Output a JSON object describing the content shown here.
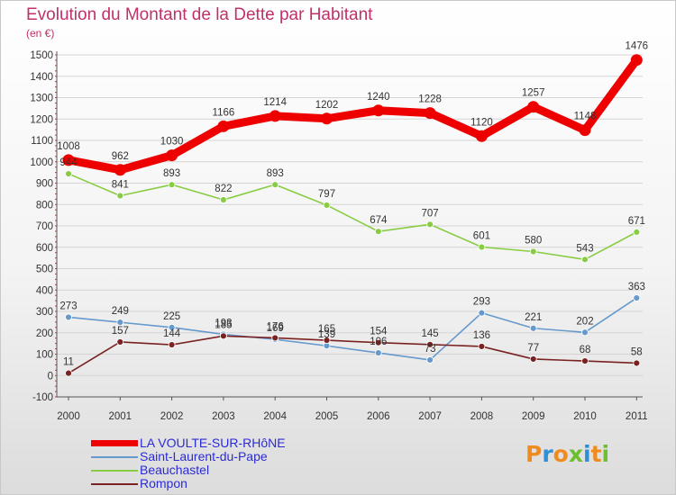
{
  "header": {
    "title": "Evolution du Montant de la Dette par Habitant",
    "unit": "(en €)"
  },
  "logo": {
    "text": "Proxiti",
    "colors": [
      "#f08c1e",
      "#2e8fd6",
      "#f08c1e",
      "#6cbf2e",
      "#2e8fd6",
      "#f08c1e",
      "#6cbf2e"
    ]
  },
  "chart_data": {
    "type": "line",
    "title": "Evolution du Montant de la Dette par Habitant",
    "ylabel": "(en €)",
    "xlabel": "",
    "categories": [
      "2000",
      "2001",
      "2002",
      "2003",
      "2004",
      "2005",
      "2006",
      "2007",
      "2008",
      "2009",
      "2010",
      "2011"
    ],
    "ylim": [
      -100,
      1500
    ],
    "yticks": [
      "1500",
      "1400",
      "1300",
      "1200",
      "1100",
      "1000",
      "900",
      "800",
      "700",
      "600",
      "500",
      "400",
      "300",
      "200",
      "100",
      "0",
      "-100"
    ],
    "grid": "horizontal",
    "legend_position": "bottom-left",
    "series": [
      {
        "name": "LA VOULTE-SUR-RHôNE",
        "color": "#ee0000",
        "values": [
          1008,
          962,
          1030,
          1166,
          1214,
          1202,
          1240,
          1228,
          1120,
          1257,
          1148,
          1476
        ],
        "labels": [
          "1008",
          "962",
          "1030",
          "1166",
          "1214",
          "1202",
          "1240",
          "1228",
          "1120",
          "1257",
          "1148",
          "1476"
        ]
      },
      {
        "name": "Saint-Laurent-du-Pape",
        "color": "#6699cc",
        "values": [
          273,
          249,
          225,
          193,
          169,
          139,
          106,
          73,
          293,
          221,
          202,
          363
        ],
        "labels": [
          "273",
          "249",
          "225",
          "193",
          "169",
          "139",
          "106",
          "73",
          "293",
          "221",
          "202",
          "363"
        ]
      },
      {
        "name": "Beauchastel",
        "color": "#88cc44",
        "values": [
          944,
          841,
          893,
          822,
          893,
          797,
          674,
          707,
          601,
          580,
          543,
          671
        ],
        "labels": [
          "944",
          "841",
          "893",
          "822",
          "893",
          "797",
          "674",
          "707",
          "601",
          "580",
          "543",
          "671"
        ]
      },
      {
        "name": "Rompon",
        "color": "#7a2222",
        "values": [
          11,
          157,
          144,
          185,
          176,
          165,
          154,
          145,
          136,
          77,
          68,
          58
        ],
        "labels": [
          "11",
          "157",
          "144",
          "185",
          "176",
          "165",
          "154",
          "145",
          "136",
          "77",
          "68",
          "58"
        ]
      }
    ]
  }
}
